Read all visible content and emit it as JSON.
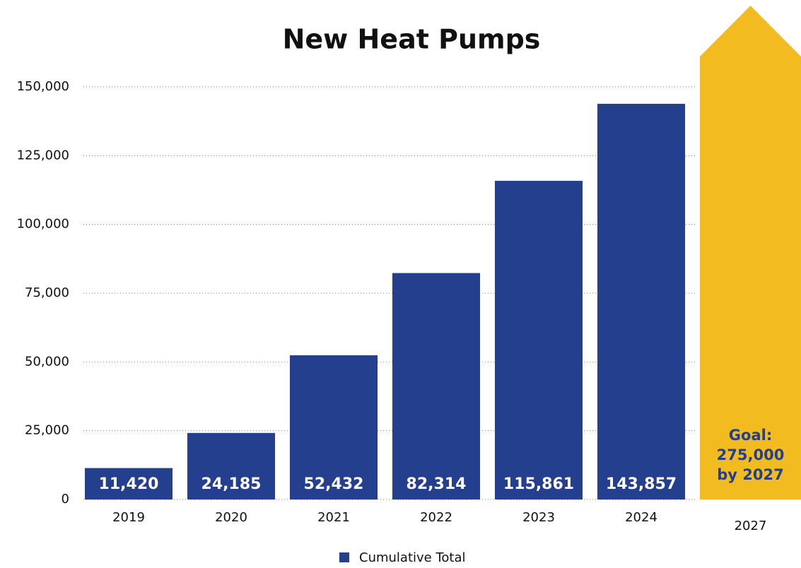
{
  "chart_data": {
    "type": "bar",
    "title": "New Heat Pumps",
    "categories": [
      "2019",
      "2020",
      "2021",
      "2022",
      "2023",
      "2024"
    ],
    "series": [
      {
        "name": "Cumulative Total",
        "color": "#233f8e",
        "values": [
          11420,
          24185,
          52432,
          82314,
          115861,
          143857
        ],
        "value_labels": [
          "11,420",
          "24,185",
          "52,432",
          "82,314",
          "115,861",
          "143,857"
        ]
      }
    ],
    "goal": {
      "category": "2027",
      "value": 275000,
      "label_lines": [
        "Goal:",
        "275,000",
        "by 2027"
      ],
      "color": "#f2bb1f"
    },
    "ylim": [
      0,
      150000
    ],
    "yticks": [
      0,
      {
        "value": 25000,
        "label": "25,000"
      },
      {
        "value": 50000,
        "label": "50,000"
      },
      {
        "value": 75000,
        "label": "75,000"
      },
      {
        "value": 100000,
        "label": "100,000"
      },
      {
        "value": 125000,
        "label": "125,000"
      },
      {
        "value": 150000,
        "label": "150,000"
      }
    ],
    "grid": true,
    "legend": "bottom"
  }
}
